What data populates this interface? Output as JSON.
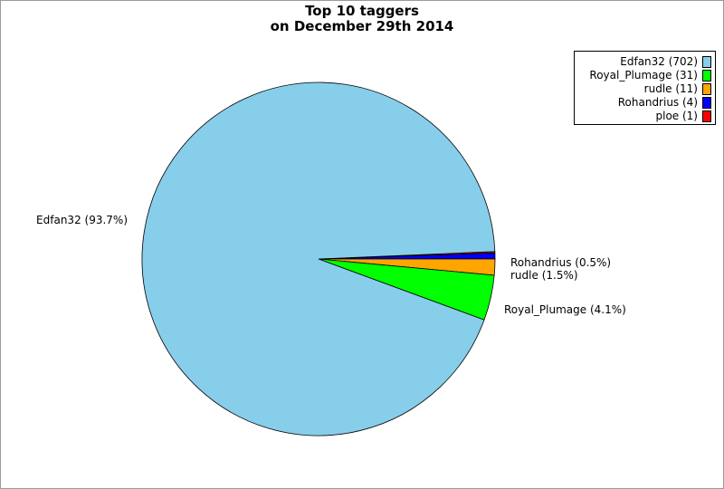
{
  "chart_data": {
    "type": "pie",
    "title": [
      "Top 10 taggers",
      "on December 29th 2014"
    ],
    "slices": [
      {
        "name": "Edfan32",
        "value": 702,
        "color": "#87ceeb",
        "legend": "Edfan32 (702)",
        "label": "Edfan32 (93.7%)"
      },
      {
        "name": "Royal_Plumage",
        "value": 31,
        "color": "#00ff00",
        "legend": "Royal_Plumage (31)",
        "label": "Royal_Plumage (4.1%)"
      },
      {
        "name": "rudle",
        "value": 11,
        "color": "#ffa500",
        "legend": "rudle (11)",
        "label": "rudle (1.5%)"
      },
      {
        "name": "Rohandrius",
        "value": 4,
        "color": "#0000ff",
        "legend": "Rohandrius (4)",
        "label": "Rohandrius (0.5%)"
      },
      {
        "name": "ploe",
        "value": 1,
        "color": "#ff0000",
        "legend": "ploe (1)",
        "label": ""
      }
    ],
    "legend_position": "top-right"
  }
}
